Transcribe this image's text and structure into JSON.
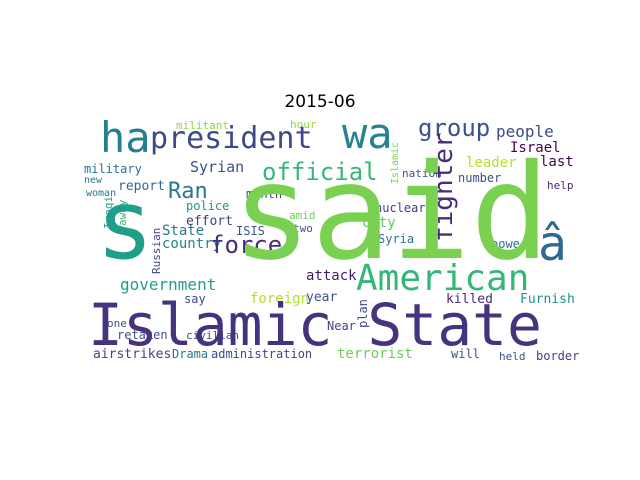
{
  "chart_data": {
    "type": "wordcloud",
    "title": "2015-06",
    "colormap": "viridis",
    "words": [
      {
        "text": "said",
        "color": "#7ad151"
      },
      {
        "text": "s",
        "color": "#1f9e89"
      },
      {
        "text": "Islamic State",
        "color": "#46337e"
      },
      {
        "text": "American",
        "color": "#35b779"
      },
      {
        "text": "wa",
        "color": "#26828e"
      },
      {
        "text": "ha",
        "color": "#277f8e"
      },
      {
        "text": "president",
        "color": "#3e4989"
      },
      {
        "text": "â",
        "color": "#31688e"
      },
      {
        "text": "fighter",
        "color": "#472c7a"
      },
      {
        "text": "group",
        "color": "#3b528b"
      },
      {
        "text": "official",
        "color": "#35b779"
      },
      {
        "text": "force",
        "color": "#472d7b"
      },
      {
        "text": "Ran",
        "color": "#2a788e"
      },
      {
        "text": "government",
        "color": "#1f9e89"
      },
      {
        "text": "attack",
        "color": "#48186a"
      },
      {
        "text": "people",
        "color": "#3e4989"
      },
      {
        "text": "Israel",
        "color": "#440154"
      },
      {
        "text": "Syrian",
        "color": "#3b528b"
      },
      {
        "text": "country",
        "color": "#26828e"
      },
      {
        "text": "leader",
        "color": "#b5de2b"
      },
      {
        "text": "last",
        "color": "#440154"
      },
      {
        "text": "number",
        "color": "#3e4989"
      },
      {
        "text": "State",
        "color": "#2a788e"
      },
      {
        "text": "foreign",
        "color": "#b5de2b"
      },
      {
        "text": "city",
        "color": "#5ec962"
      },
      {
        "text": "nuclear",
        "color": "#433e85"
      },
      {
        "text": "Syria",
        "color": "#2c728e"
      },
      {
        "text": "year",
        "color": "#3b528b"
      },
      {
        "text": "killed",
        "color": "#482878"
      },
      {
        "text": "Furnish",
        "color": "#21918c"
      },
      {
        "text": "effort",
        "color": "#433e85"
      },
      {
        "text": "report",
        "color": "#31688e"
      },
      {
        "text": "military",
        "color": "#2c728e"
      },
      {
        "text": "police",
        "color": "#21918c"
      },
      {
        "text": "month",
        "color": "#414487"
      },
      {
        "text": "ISIS",
        "color": "#3b528b"
      },
      {
        "text": "two",
        "color": "#3b528b"
      },
      {
        "text": "amid",
        "color": "#6ece58"
      },
      {
        "text": "power",
        "color": "#2c728e"
      },
      {
        "text": "help",
        "color": "#482878"
      },
      {
        "text": "plan",
        "color": "#3e4989"
      },
      {
        "text": "Near",
        "color": "#404688"
      },
      {
        "text": "will",
        "color": "#3b528b"
      },
      {
        "text": "held",
        "color": "#3b528b"
      },
      {
        "text": "border",
        "color": "#414487"
      },
      {
        "text": "terrorist",
        "color": "#6ece58"
      },
      {
        "text": "administration",
        "color": "#3e4989"
      },
      {
        "text": "Drama",
        "color": "#2a788e"
      },
      {
        "text": "airstrikes",
        "color": "#414487"
      },
      {
        "text": "retaken",
        "color": "#3b528b"
      },
      {
        "text": "one",
        "color": "#3b528b"
      },
      {
        "text": "civilian",
        "color": "#3b528b"
      },
      {
        "text": "say",
        "color": "#3e4989"
      },
      {
        "text": "Iraqi",
        "color": "#20a486"
      },
      {
        "text": "Russian",
        "color": "#414487"
      },
      {
        "text": "away",
        "color": "#35b779"
      },
      {
        "text": "new",
        "color": "#2a788e"
      },
      {
        "text": "woman",
        "color": "#2c728e"
      },
      {
        "text": "militant",
        "color": "#90d743"
      },
      {
        "text": "hour",
        "color": "#90d743"
      },
      {
        "text": "nation",
        "color": "#3b528b"
      },
      {
        "text": "Islamic",
        "color": "#7ad151"
      }
    ]
  }
}
